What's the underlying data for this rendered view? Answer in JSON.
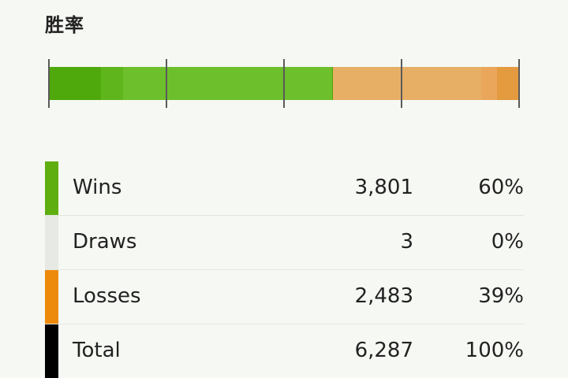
{
  "title": "胜率",
  "bar": {
    "wins_fraction": 0.6,
    "draws_fraction": 0.0,
    "losses_fraction": 0.39
  },
  "rows": [
    {
      "label": "Wins",
      "count": "3,801",
      "percent": "60%",
      "color": "#5fae10"
    },
    {
      "label": "Draws",
      "count": "3",
      "percent": "0%",
      "color": "#e6e9e4"
    },
    {
      "label": "Losses",
      "count": "2,483",
      "percent": "39%",
      "color": "#ee8a0b"
    },
    {
      "label": "Total",
      "count": "6,287",
      "percent": "100%",
      "color": "#000000"
    }
  ]
}
